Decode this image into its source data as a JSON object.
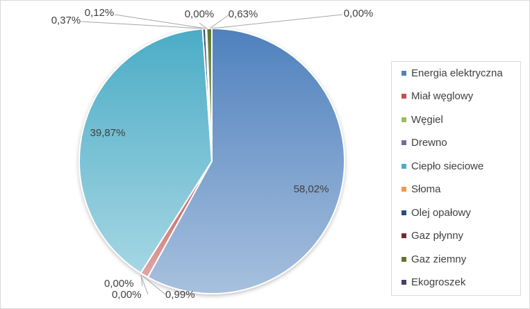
{
  "chart_data": {
    "type": "pie",
    "title": "",
    "categories": [
      "Energia elektryczna",
      "Miał węglowy",
      "Węgiel",
      "Drewno",
      "Ciepło sieciowe",
      "Słoma",
      "Olej opałowy",
      "Gaz płynny",
      "Gaz ziemny",
      "Ekogroszek"
    ],
    "values": [
      58.02,
      0.99,
      0.0,
      0.0,
      39.87,
      0.0,
      0.37,
      0.12,
      0.63,
      0.0
    ],
    "labels": [
      "58,02%",
      "0,99%",
      "0,00%",
      "0,00%",
      "39,87%",
      "0,00%",
      "0,37%",
      "0,12%",
      "0,63%",
      "0,00%"
    ],
    "colors": [
      "#4f81bd",
      "#c0504d",
      "#9bbb59",
      "#8064a2",
      "#4bacc6",
      "#f79646",
      "#2c4d75",
      "#772c2a",
      "#5f7530",
      "#4d3b62"
    ],
    "legend_position": "right",
    "start": "12 o'clock",
    "direction": "clockwise"
  }
}
